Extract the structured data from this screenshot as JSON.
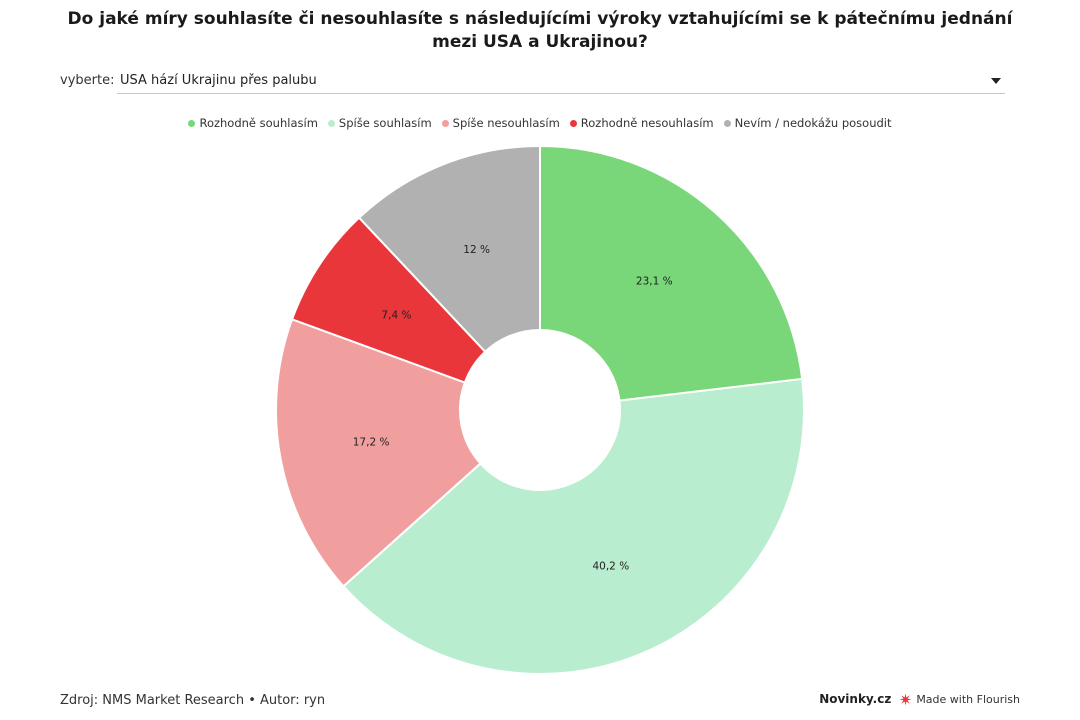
{
  "title": "Do jaké míry souhlasíte či nesouhlasíte s následujícími výroky vztahujícími se k pátečnímu jednání mezi USA a Ukrajinou?",
  "filter": {
    "label": "vyberte:",
    "selected": "USA hází Ukrajinu přes palubu"
  },
  "chart_data": {
    "type": "pie",
    "donut": true,
    "legend_position": "top-center",
    "slices": [
      {
        "name": "Rozhodně souhlasím",
        "value": 23.1,
        "label": "23,1 %",
        "color": "#79d77a"
      },
      {
        "name": "Spíše souhlasím",
        "value": 40.2,
        "label": "40,2 %",
        "color": "#b8edcf"
      },
      {
        "name": "Spíše nesouhlasím",
        "value": 17.2,
        "label": "17,2 %",
        "color": "#f19e9f"
      },
      {
        "name": "Rozhodně nesouhlasím",
        "value": 7.4,
        "label": "7,4 %",
        "color": "#e8363a"
      },
      {
        "name": "Nevím / nedokážu posoudit",
        "value": 12,
        "label": "12 %",
        "color": "#b1b1b1"
      }
    ]
  },
  "footer": {
    "source": "Zdroj: NMS Market Research • Autor: ryn",
    "brand": "Novinky.cz",
    "made_with": "Made with Flourish",
    "flourish_icon": "flourish-logo-icon"
  }
}
